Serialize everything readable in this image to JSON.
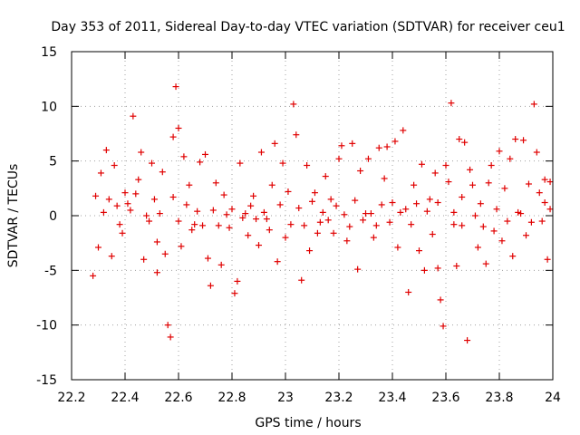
{
  "chart_data": {
    "type": "scatter",
    "title": "Day 353 of 2011, Sidereal Day-to-day VTEC variation (SDTVAR) for receiver ceu1",
    "xlabel": "GPS time / hours",
    "ylabel": "SDTVAR / TECUs",
    "xlim": [
      22.2,
      24
    ],
    "ylim": [
      -15,
      15
    ],
    "x_ticks": [
      22.2,
      22.4,
      22.6,
      22.8,
      23,
      23.2,
      23.4,
      23.6,
      23.8,
      24
    ],
    "y_ticks": [
      -15,
      -10,
      -5,
      0,
      5,
      10,
      15
    ],
    "x_tick_labels": [
      "22.2",
      "22.4",
      "22.6",
      "22.8",
      "23",
      "23.2",
      "23.4",
      "23.6",
      "23.8",
      "24"
    ],
    "y_tick_labels": [
      "-15",
      "-10",
      "-5",
      "0",
      "5",
      "10",
      "15"
    ],
    "grid": "dotted",
    "marker": "+",
    "series": [
      {
        "name": "SDTVAR",
        "color": "#e00000",
        "points": [
          [
            22.28,
            -5.5
          ],
          [
            22.3,
            -2.9
          ],
          [
            22.29,
            1.8
          ],
          [
            22.31,
            3.9
          ],
          [
            22.33,
            6.0
          ],
          [
            22.35,
            -3.7
          ],
          [
            22.36,
            4.6
          ],
          [
            22.38,
            -0.8
          ],
          [
            22.4,
            2.1
          ],
          [
            22.41,
            1.1
          ],
          [
            22.43,
            9.1
          ],
          [
            22.45,
            3.3
          ],
          [
            22.46,
            5.8
          ],
          [
            22.47,
            -4.0
          ],
          [
            22.49,
            -0.5
          ],
          [
            22.5,
            4.8
          ],
          [
            22.52,
            -2.4
          ],
          [
            22.52,
            -5.2
          ],
          [
            22.54,
            4.0
          ],
          [
            22.55,
            -3.5
          ],
          [
            22.56,
            -10.0
          ],
          [
            22.57,
            -11.1
          ],
          [
            22.58,
            7.2
          ],
          [
            22.59,
            11.8
          ],
          [
            22.6,
            8.0
          ],
          [
            22.61,
            -2.8
          ],
          [
            22.62,
            5.4
          ],
          [
            22.64,
            2.8
          ],
          [
            22.66,
            -0.8
          ],
          [
            22.68,
            4.9
          ],
          [
            22.7,
            5.6
          ],
          [
            22.71,
            -3.9
          ],
          [
            22.72,
            -6.4
          ],
          [
            22.74,
            3.0
          ],
          [
            22.76,
            -4.5
          ],
          [
            22.77,
            1.9
          ],
          [
            22.79,
            -1.1
          ],
          [
            22.81,
            -7.1
          ],
          [
            22.82,
            -6.0
          ],
          [
            22.83,
            4.8
          ],
          [
            22.85,
            0.2
          ],
          [
            22.86,
            -1.8
          ],
          [
            22.88,
            1.8
          ],
          [
            22.9,
            -2.7
          ],
          [
            22.91,
            5.8
          ],
          [
            22.93,
            -0.3
          ],
          [
            22.95,
            2.8
          ],
          [
            22.96,
            6.6
          ],
          [
            22.97,
            -4.2
          ],
          [
            22.98,
            1.0
          ],
          [
            22.99,
            4.8
          ],
          [
            23.0,
            -2.0
          ],
          [
            23.01,
            2.2
          ],
          [
            23.02,
            -0.8
          ],
          [
            23.03,
            10.2
          ],
          [
            23.04,
            7.4
          ],
          [
            23.06,
            -5.9
          ],
          [
            23.08,
            4.6
          ],
          [
            23.09,
            -3.2
          ],
          [
            23.11,
            2.1
          ],
          [
            23.13,
            -0.6
          ],
          [
            23.15,
            3.6
          ],
          [
            23.17,
            1.5
          ],
          [
            23.18,
            -1.6
          ],
          [
            23.2,
            5.2
          ],
          [
            23.21,
            6.4
          ],
          [
            23.23,
            -2.3
          ],
          [
            23.25,
            6.6
          ],
          [
            23.27,
            -4.9
          ],
          [
            23.28,
            4.1
          ],
          [
            23.3,
            0.2
          ],
          [
            23.31,
            5.2
          ],
          [
            23.33,
            -2.0
          ],
          [
            23.35,
            6.2
          ],
          [
            23.37,
            3.4
          ],
          [
            23.38,
            6.3
          ],
          [
            23.4,
            1.2
          ],
          [
            23.41,
            6.8
          ],
          [
            23.42,
            -2.9
          ],
          [
            23.44,
            7.8
          ],
          [
            23.45,
            0.6
          ],
          [
            23.46,
            -7.0
          ],
          [
            23.48,
            2.8
          ],
          [
            23.5,
            -3.2
          ],
          [
            23.51,
            4.7
          ],
          [
            23.52,
            -5.0
          ],
          [
            23.54,
            1.5
          ],
          [
            23.55,
            -1.7
          ],
          [
            23.56,
            3.9
          ],
          [
            23.57,
            -4.8
          ],
          [
            23.58,
            -7.7
          ],
          [
            23.59,
            -10.1
          ],
          [
            23.6,
            4.6
          ],
          [
            23.61,
            3.1
          ],
          [
            23.62,
            10.3
          ],
          [
            23.63,
            -0.8
          ],
          [
            23.64,
            -4.6
          ],
          [
            23.65,
            7.0
          ],
          [
            23.66,
            1.7
          ],
          [
            23.67,
            6.7
          ],
          [
            23.68,
            -11.4
          ],
          [
            23.69,
            4.2
          ],
          [
            23.7,
            2.8
          ],
          [
            23.72,
            -2.9
          ],
          [
            23.73,
            1.1
          ],
          [
            23.75,
            -4.4
          ],
          [
            23.76,
            3.0
          ],
          [
            23.77,
            4.6
          ],
          [
            23.78,
            -1.4
          ],
          [
            23.8,
            5.9
          ],
          [
            23.81,
            -2.3
          ],
          [
            23.82,
            2.5
          ],
          [
            23.84,
            5.2
          ],
          [
            23.85,
            -3.7
          ],
          [
            23.86,
            7.0
          ],
          [
            23.87,
            0.3
          ],
          [
            23.89,
            6.9
          ],
          [
            23.9,
            -1.8
          ],
          [
            23.91,
            2.9
          ],
          [
            23.93,
            10.2
          ],
          [
            23.94,
            5.8
          ],
          [
            23.95,
            2.1
          ],
          [
            23.96,
            -0.5
          ],
          [
            23.97,
            3.3
          ],
          [
            23.98,
            -4.0
          ],
          [
            23.99,
            0.6
          ],
          [
            22.32,
            0.3
          ],
          [
            22.34,
            1.5
          ],
          [
            22.37,
            0.9
          ],
          [
            22.39,
            -1.6
          ],
          [
            22.42,
            0.5
          ],
          [
            22.44,
            2.0
          ],
          [
            22.48,
            0.0
          ],
          [
            22.51,
            1.5
          ],
          [
            22.53,
            0.2
          ],
          [
            22.58,
            1.7
          ],
          [
            22.6,
            -0.5
          ],
          [
            22.63,
            1.0
          ],
          [
            22.65,
            -1.3
          ],
          [
            22.67,
            0.4
          ],
          [
            22.69,
            -0.9
          ],
          [
            22.73,
            0.5
          ],
          [
            22.75,
            -0.9
          ],
          [
            22.78,
            0.1
          ],
          [
            22.8,
            0.6
          ],
          [
            22.84,
            -0.2
          ],
          [
            22.87,
            0.9
          ],
          [
            22.89,
            -0.3
          ],
          [
            22.92,
            0.3
          ],
          [
            22.94,
            -1.3
          ],
          [
            23.05,
            0.7
          ],
          [
            23.07,
            -0.9
          ],
          [
            23.1,
            1.3
          ],
          [
            23.12,
            -1.6
          ],
          [
            23.14,
            0.3
          ],
          [
            23.16,
            -0.4
          ],
          [
            23.19,
            0.9
          ],
          [
            23.22,
            0.1
          ],
          [
            23.24,
            -1.0
          ],
          [
            23.26,
            1.4
          ],
          [
            23.29,
            -0.4
          ],
          [
            23.32,
            0.2
          ],
          [
            23.34,
            -0.9
          ],
          [
            23.36,
            1.0
          ],
          [
            23.39,
            -0.6
          ],
          [
            23.43,
            0.3
          ],
          [
            23.47,
            -0.8
          ],
          [
            23.49,
            1.1
          ],
          [
            23.53,
            0.4
          ],
          [
            23.57,
            1.2
          ],
          [
            23.63,
            0.3
          ],
          [
            23.66,
            -0.9
          ],
          [
            23.71,
            0.0
          ],
          [
            23.74,
            -1.0
          ],
          [
            23.79,
            0.6
          ],
          [
            23.83,
            -0.5
          ],
          [
            23.88,
            0.2
          ],
          [
            23.92,
            -0.6
          ],
          [
            23.97,
            1.2
          ],
          [
            23.99,
            3.1
          ]
        ]
      }
    ]
  }
}
